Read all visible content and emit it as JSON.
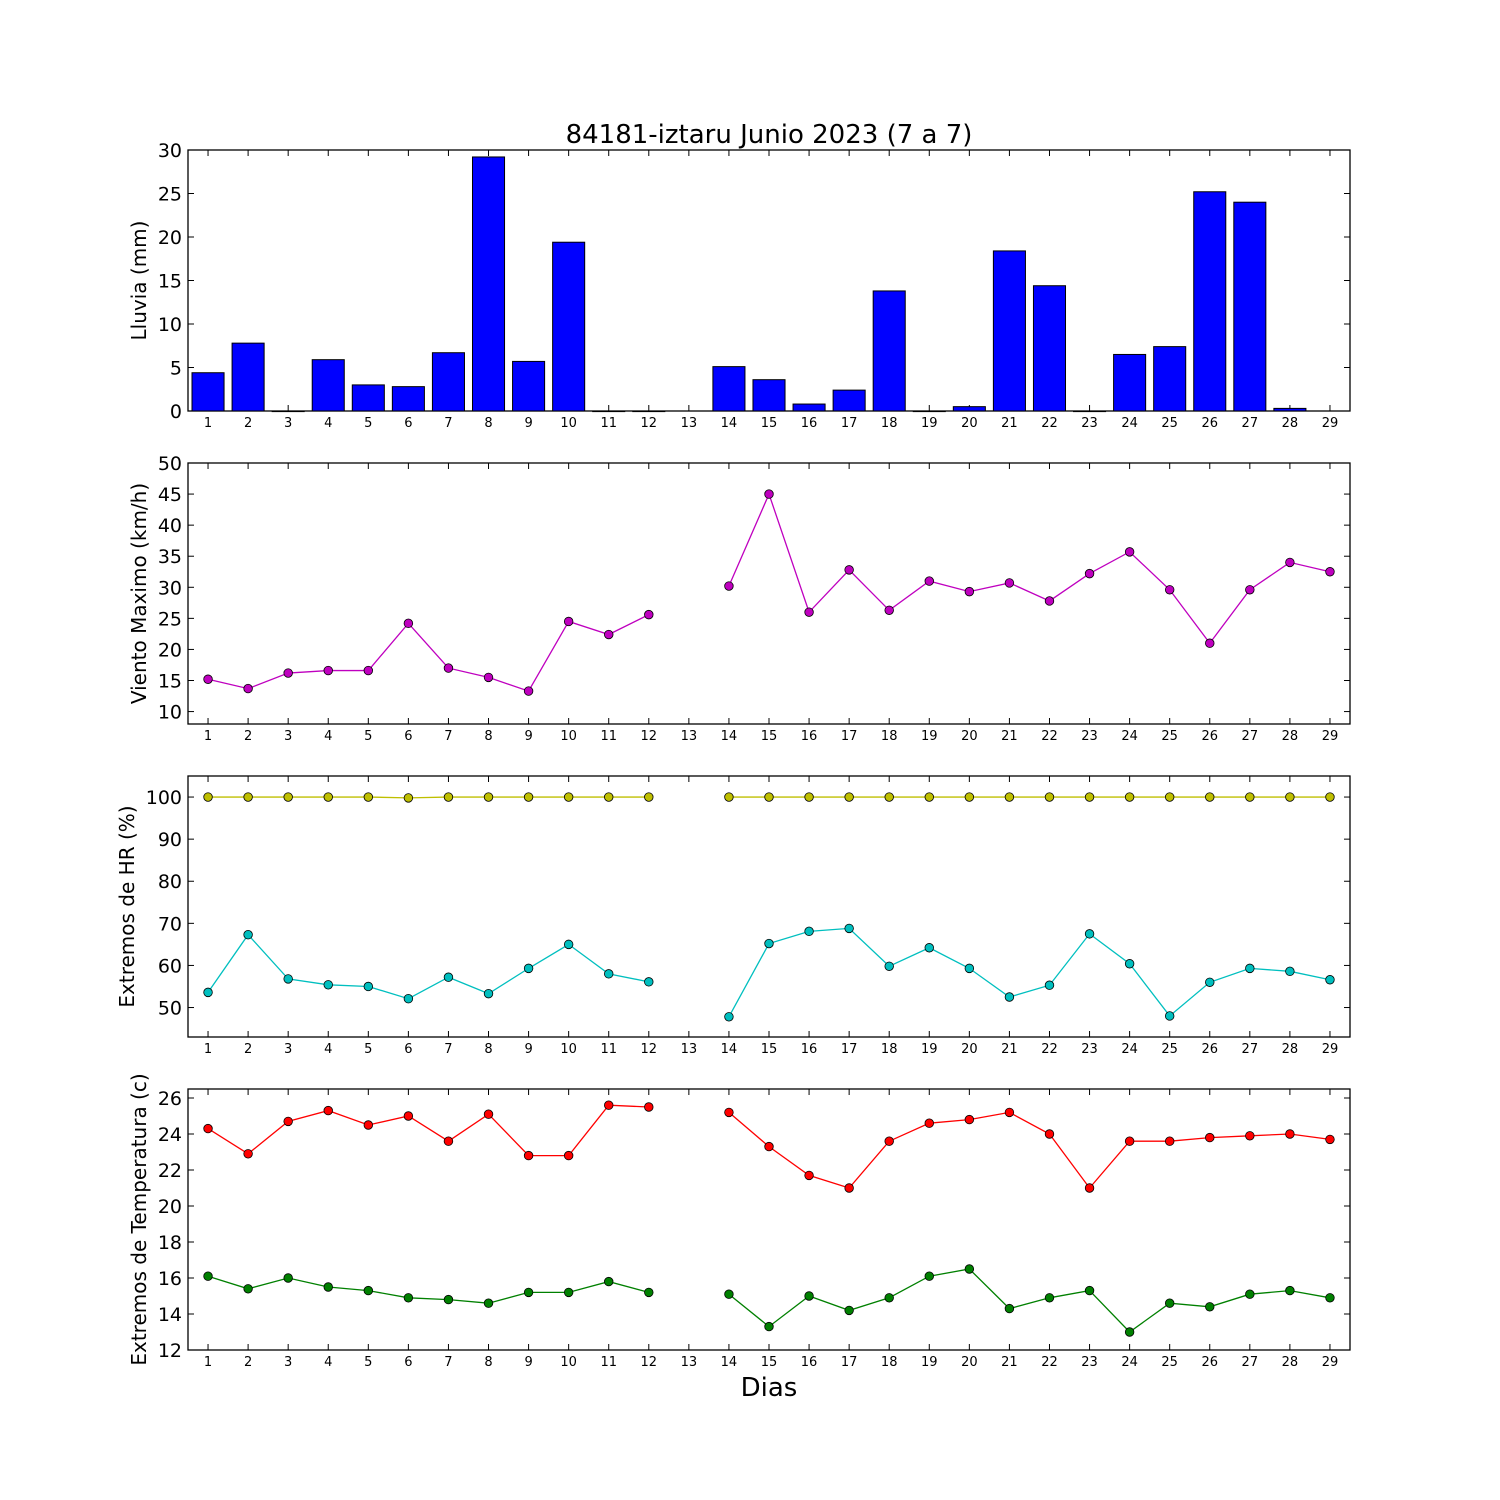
{
  "chart_data": [
    {
      "type": "bar",
      "title": "84181-iztaru Junio 2023  (7 a 7)",
      "ylabel": "Lluvia (mm)",
      "ylim": [
        0,
        30
      ],
      "yticks": [
        0,
        5,
        10,
        15,
        20,
        25,
        30
      ],
      "categories": [
        1,
        2,
        3,
        4,
        5,
        6,
        7,
        8,
        9,
        10,
        11,
        12,
        13,
        14,
        15,
        16,
        17,
        18,
        19,
        20,
        21,
        22,
        23,
        24,
        25,
        26,
        27,
        28,
        29
      ],
      "values": [
        4.4,
        7.8,
        0,
        5.9,
        3.0,
        2.8,
        6.7,
        29.2,
        5.7,
        19.4,
        0,
        0,
        null,
        5.1,
        3.6,
        0.8,
        2.4,
        13.8,
        0,
        0.5,
        18.4,
        14.4,
        0,
        6.5,
        7.4,
        25.2,
        24.0,
        0.3,
        null
      ],
      "colors": {
        "bar": "#0000ff"
      }
    },
    {
      "type": "line",
      "ylabel": "Viento Maximo (km/h)",
      "ylim": [
        8,
        50
      ],
      "yticks": [
        10,
        15,
        20,
        25,
        30,
        35,
        40,
        45,
        50
      ],
      "x": [
        1,
        2,
        3,
        4,
        5,
        6,
        7,
        8,
        9,
        10,
        11,
        12,
        13,
        14,
        15,
        16,
        17,
        18,
        19,
        20,
        21,
        22,
        23,
        24,
        25,
        26,
        27,
        28,
        29
      ],
      "series": [
        {
          "values": [
            15.2,
            13.7,
            16.2,
            16.6,
            16.6,
            24.2,
            17.0,
            15.5,
            13.3,
            24.5,
            22.4,
            25.6,
            null,
            30.2,
            45.0,
            26.0,
            32.8,
            26.3,
            31.0,
            29.3,
            30.7,
            27.8,
            32.2,
            35.7,
            29.6,
            21.0,
            29.6,
            34.0,
            32.5
          ],
          "color": "#bf00bf"
        }
      ]
    },
    {
      "type": "line",
      "ylabel": "Extremos de HR (%)",
      "ylim": [
        43,
        105
      ],
      "yticks": [
        50,
        60,
        70,
        80,
        90,
        100
      ],
      "x": [
        1,
        2,
        3,
        4,
        5,
        6,
        7,
        8,
        9,
        10,
        11,
        12,
        13,
        14,
        15,
        16,
        17,
        18,
        19,
        20,
        21,
        22,
        23,
        24,
        25,
        26,
        27,
        28,
        29
      ],
      "series": [
        {
          "values": [
            100,
            100,
            100,
            100,
            100,
            99.8,
            100,
            100,
            100,
            100,
            100,
            100,
            null,
            100,
            100,
            100,
            100,
            100,
            100,
            100,
            100,
            100,
            100,
            100,
            100,
            100,
            100,
            100,
            100
          ],
          "color": "#bfbf00"
        },
        {
          "values": [
            53.6,
            67.3,
            56.8,
            55.4,
            55.0,
            52.1,
            57.2,
            53.3,
            59.3,
            65.0,
            58.0,
            56.1,
            null,
            47.8,
            65.2,
            68.1,
            68.8,
            59.8,
            64.2,
            59.3,
            52.5,
            55.3,
            67.5,
            60.4,
            48.0,
            56.0,
            59.3,
            58.6,
            56.6
          ],
          "color": "#00bfbf"
        }
      ]
    },
    {
      "type": "line",
      "ylabel": "Extremos de Temperatura (c)",
      "xlabel": "Dias",
      "ylim": [
        12,
        26.5
      ],
      "yticks": [
        12,
        14,
        16,
        18,
        20,
        22,
        24,
        26
      ],
      "x": [
        1,
        2,
        3,
        4,
        5,
        6,
        7,
        8,
        9,
        10,
        11,
        12,
        13,
        14,
        15,
        16,
        17,
        18,
        19,
        20,
        21,
        22,
        23,
        24,
        25,
        26,
        27,
        28,
        29
      ],
      "series": [
        {
          "values": [
            24.3,
            22.9,
            24.7,
            25.3,
            24.5,
            25.0,
            23.6,
            25.1,
            22.8,
            22.8,
            25.6,
            25.5,
            null,
            25.2,
            23.3,
            21.7,
            21.0,
            23.6,
            24.6,
            24.8,
            25.2,
            24.0,
            21.0,
            23.6,
            23.6,
            23.8,
            23.9,
            24.0,
            23.7
          ],
          "color": "#ff0000"
        },
        {
          "values": [
            16.1,
            15.4,
            16.0,
            15.5,
            15.3,
            14.9,
            14.8,
            14.6,
            15.2,
            15.2,
            15.8,
            15.2,
            null,
            15.1,
            13.3,
            15.0,
            14.2,
            14.9,
            16.1,
            16.5,
            14.3,
            14.9,
            15.3,
            13.0,
            14.6,
            14.4,
            15.1,
            15.3,
            14.9
          ],
          "color": "#008000"
        }
      ]
    }
  ]
}
